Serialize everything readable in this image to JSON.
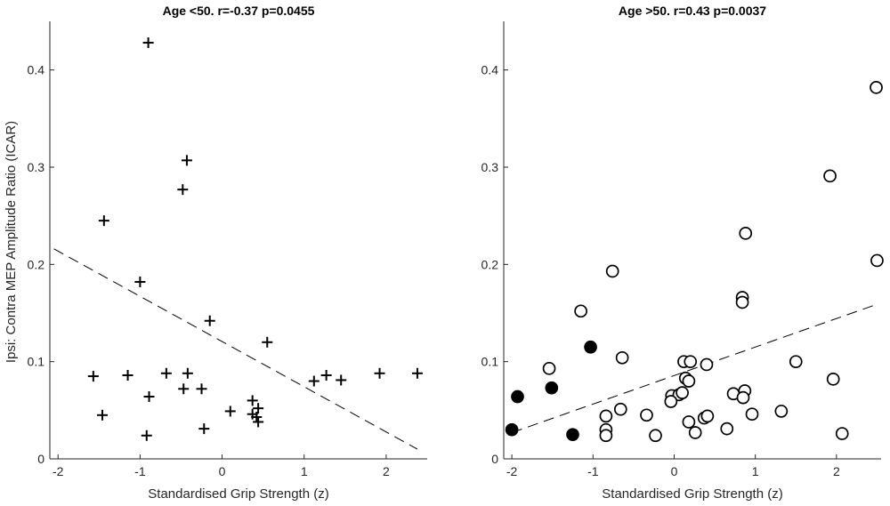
{
  "chart_data": [
    {
      "type": "scatter",
      "title": "Age <50. r=-0.37 p=0.0455",
      "xlabel": "Standardised Grip Strength (z)",
      "ylabel": "Ipsi: Contra  MEP Amplitude Ratio (ICAR)",
      "xlim": [
        -2.1,
        2.5
      ],
      "ylim": [
        0,
        0.45
      ],
      "xticks": [
        -2,
        -1,
        0,
        1,
        2
      ],
      "yticks": [
        0,
        0.1,
        0.2,
        0.3,
        0.4
      ],
      "xtick_labels": [
        "-2",
        "-1",
        "0",
        "1",
        "2"
      ],
      "ytick_labels": [
        "0",
        "0.1",
        "0.2",
        "0.3",
        "0.4"
      ],
      "marker": "plus",
      "points": [
        {
          "x": -0.9,
          "y": 0.428
        },
        {
          "x": -0.43,
          "y": 0.307
        },
        {
          "x": -0.48,
          "y": 0.277
        },
        {
          "x": -1.44,
          "y": 0.245
        },
        {
          "x": -1.0,
          "y": 0.182
        },
        {
          "x": -0.15,
          "y": 0.142
        },
        {
          "x": 0.55,
          "y": 0.12
        },
        {
          "x": -1.57,
          "y": 0.085
        },
        {
          "x": -1.15,
          "y": 0.086
        },
        {
          "x": -0.68,
          "y": 0.088
        },
        {
          "x": -0.42,
          "y": 0.088
        },
        {
          "x": -0.47,
          "y": 0.072
        },
        {
          "x": -0.25,
          "y": 0.072
        },
        {
          "x": -0.89,
          "y": 0.064
        },
        {
          "x": -1.46,
          "y": 0.045
        },
        {
          "x": -0.92,
          "y": 0.024
        },
        {
          "x": -0.22,
          "y": 0.031
        },
        {
          "x": 0.1,
          "y": 0.049
        },
        {
          "x": 0.37,
          "y": 0.06
        },
        {
          "x": 0.44,
          "y": 0.052
        },
        {
          "x": 0.37,
          "y": 0.046
        },
        {
          "x": 0.42,
          "y": 0.043
        },
        {
          "x": 0.44,
          "y": 0.038
        },
        {
          "x": 1.12,
          "y": 0.08
        },
        {
          "x": 1.27,
          "y": 0.086
        },
        {
          "x": 1.45,
          "y": 0.081
        },
        {
          "x": 1.92,
          "y": 0.088
        },
        {
          "x": 2.38,
          "y": 0.088
        }
      ],
      "fit_line": {
        "x": [
          -2.05,
          2.38
        ],
        "y": [
          0.216,
          0.01
        ]
      }
    },
    {
      "type": "scatter",
      "title": "Age >50. r=0.43 p=0.0037",
      "xlabel": "Standardised Grip Strength (z)",
      "xlim": [
        -2.1,
        2.55
      ],
      "ylim": [
        0,
        0.45
      ],
      "xticks": [
        -2,
        -1,
        0,
        1,
        2
      ],
      "yticks": [
        0,
        0.1,
        0.2,
        0.3,
        0.4
      ],
      "xtick_labels": [
        "-2",
        "-1",
        "0",
        "1",
        "2"
      ],
      "ytick_labels": [
        "0",
        "0.1",
        "0.2",
        "0.3",
        "0.4"
      ],
      "series": [
        {
          "name": "open circles",
          "marker": "open-circle",
          "points": [
            {
              "x": 2.49,
              "y": 0.382
            },
            {
              "x": 1.92,
              "y": 0.291
            },
            {
              "x": 0.88,
              "y": 0.232
            },
            {
              "x": 2.5,
              "y": 0.204
            },
            {
              "x": -0.76,
              "y": 0.193
            },
            {
              "x": -1.15,
              "y": 0.152
            },
            {
              "x": 0.84,
              "y": 0.166
            },
            {
              "x": 0.84,
              "y": 0.161
            },
            {
              "x": -1.54,
              "y": 0.093
            },
            {
              "x": -0.64,
              "y": 0.104
            },
            {
              "x": 0.12,
              "y": 0.1
            },
            {
              "x": 0.2,
              "y": 0.1
            },
            {
              "x": 0.4,
              "y": 0.097
            },
            {
              "x": 1.5,
              "y": 0.1
            },
            {
              "x": 0.14,
              "y": 0.083
            },
            {
              "x": 0.18,
              "y": 0.08
            },
            {
              "x": 1.96,
              "y": 0.082
            },
            {
              "x": 0.87,
              "y": 0.07
            },
            {
              "x": 0.73,
              "y": 0.067
            },
            {
              "x": 0.85,
              "y": 0.063
            },
            {
              "x": -0.03,
              "y": 0.065
            },
            {
              "x": 0.06,
              "y": 0.066
            },
            {
              "x": 0.1,
              "y": 0.068
            },
            {
              "x": -0.04,
              "y": 0.059
            },
            {
              "x": -0.66,
              "y": 0.051
            },
            {
              "x": -0.84,
              "y": 0.044
            },
            {
              "x": -0.34,
              "y": 0.045
            },
            {
              "x": 0.37,
              "y": 0.042
            },
            {
              "x": 0.41,
              "y": 0.044
            },
            {
              "x": 0.18,
              "y": 0.038
            },
            {
              "x": 0.96,
              "y": 0.046
            },
            {
              "x": 1.32,
              "y": 0.049
            },
            {
              "x": -0.84,
              "y": 0.03
            },
            {
              "x": -0.84,
              "y": 0.024
            },
            {
              "x": -0.23,
              "y": 0.024
            },
            {
              "x": 0.26,
              "y": 0.027
            },
            {
              "x": 0.65,
              "y": 0.031
            },
            {
              "x": 2.07,
              "y": 0.026
            }
          ]
        },
        {
          "name": "filled circles",
          "marker": "filled-circle",
          "points": [
            {
              "x": -1.03,
              "y": 0.115
            },
            {
              "x": -1.51,
              "y": 0.073
            },
            {
              "x": -1.93,
              "y": 0.064
            },
            {
              "x": -2.0,
              "y": 0.03
            },
            {
              "x": -1.25,
              "y": 0.025
            }
          ]
        }
      ],
      "fit_line": {
        "x": [
          -2.0,
          2.5
        ],
        "y": [
          0.027,
          0.159
        ]
      }
    }
  ]
}
